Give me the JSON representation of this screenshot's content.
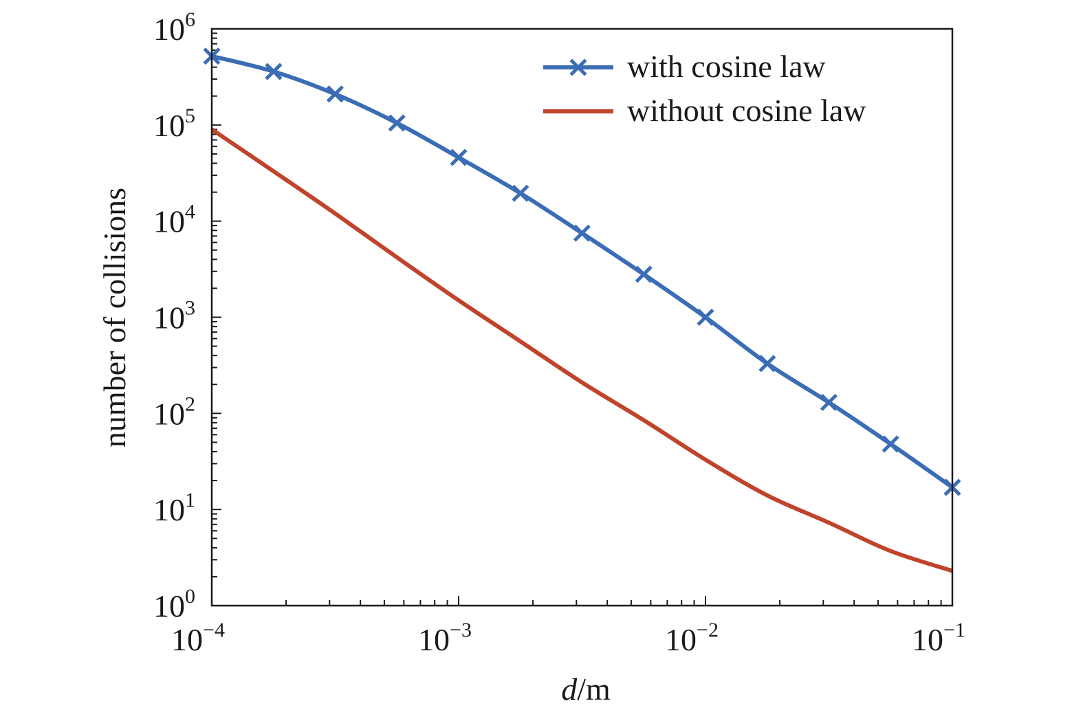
{
  "chart_data": {
    "type": "line",
    "xlabel": {
      "italic": "d",
      "rest": "/m"
    },
    "ylabel": "number of collisions",
    "xscale": "log",
    "yscale": "log",
    "xlim": [
      0.0001,
      0.1
    ],
    "ylim": [
      1,
      1000000
    ],
    "x_ticks": [
      {
        "base": "10",
        "exp": "−4",
        "value": 0.0001
      },
      {
        "base": "10",
        "exp": "−3",
        "value": 0.001
      },
      {
        "base": "10",
        "exp": "−2",
        "value": 0.01
      },
      {
        "base": "10",
        "exp": "−1",
        "value": 0.1
      }
    ],
    "y_ticks": [
      {
        "base": "10",
        "exp": "0",
        "value": 1
      },
      {
        "base": "10",
        "exp": "1",
        "value": 10
      },
      {
        "base": "10",
        "exp": "2",
        "value": 100
      },
      {
        "base": "10",
        "exp": "3",
        "value": 1000
      },
      {
        "base": "10",
        "exp": "4",
        "value": 10000
      },
      {
        "base": "10",
        "exp": "5",
        "value": 100000
      },
      {
        "base": "10",
        "exp": "6",
        "value": 1000000
      }
    ],
    "grid": false,
    "legend_position": "top-right",
    "series": [
      {
        "name": "with cosine law",
        "color": "#3a6db5",
        "marker": "x",
        "x": [
          0.0001,
          0.000178,
          0.000316,
          0.000562,
          0.001,
          0.00178,
          0.00316,
          0.00562,
          0.01,
          0.0178,
          0.0316,
          0.0562,
          0.1
        ],
        "y": [
          520000,
          360000,
          210000,
          105000,
          46000,
          19500,
          7500,
          2800,
          1000,
          330,
          130,
          48,
          17
        ]
      },
      {
        "name": "without cosine law",
        "color": "#c0432b",
        "marker": "none",
        "x": [
          0.0001,
          0.000178,
          0.000316,
          0.000562,
          0.001,
          0.00178,
          0.00316,
          0.00562,
          0.01,
          0.0178,
          0.0316,
          0.0562,
          0.1
        ],
        "y": [
          90000,
          33000,
          12000,
          4200,
          1500,
          560,
          210,
          85,
          33,
          14,
          7.3,
          3.7,
          2.3
        ]
      }
    ]
  }
}
